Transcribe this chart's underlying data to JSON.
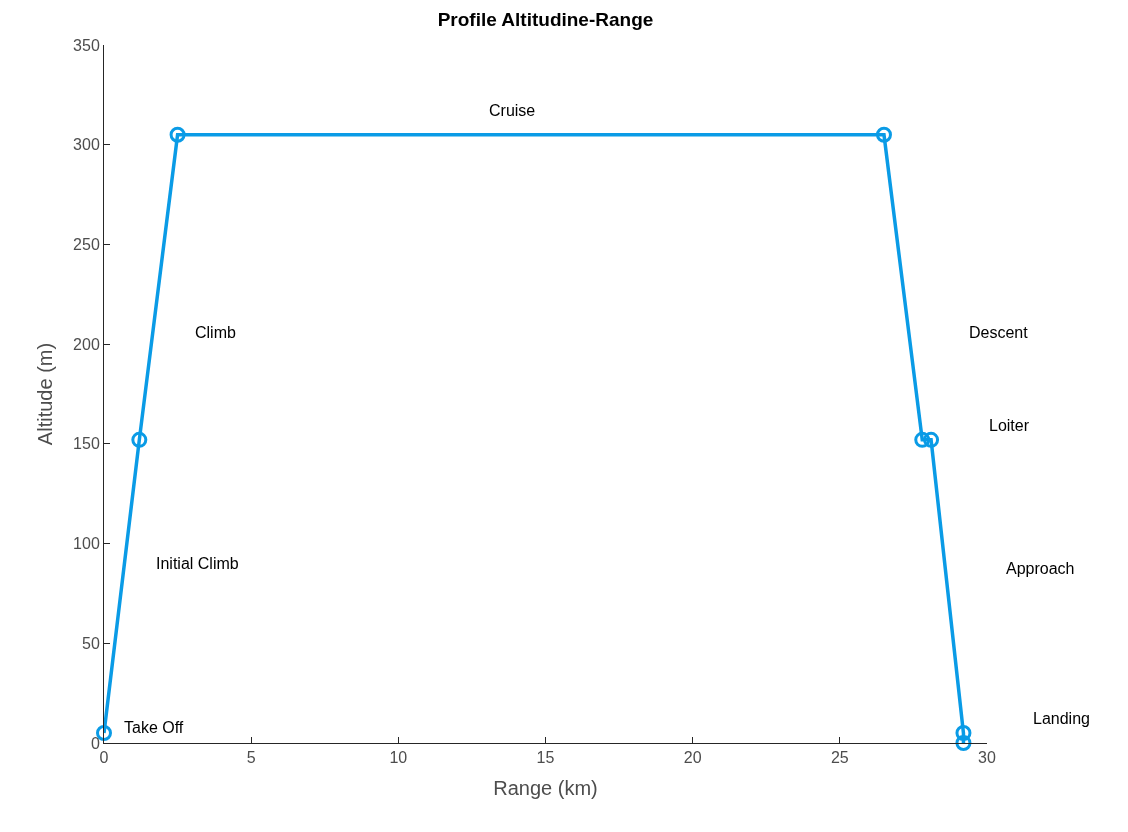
{
  "chart_data": {
    "type": "line",
    "title": "Profile Altitudine-Range",
    "xlabel": "Range (km)",
    "ylabel": "Altitude (m)",
    "x": [
      0,
      1.2,
      2.5,
      26.5,
      27.8,
      28.1,
      29.2,
      29.2
    ],
    "series": [
      {
        "color": "#0a9be6",
        "values": [
          5,
          152,
          305,
          305,
          152,
          152,
          5,
          0
        ]
      }
    ],
    "xlim": [
      0,
      30
    ],
    "xticks": [
      0,
      5,
      10,
      15,
      20,
      25,
      30
    ],
    "ylim": [
      0,
      350
    ],
    "yticks": [
      0,
      50,
      100,
      150,
      200,
      250,
      300,
      350
    ],
    "marker": "circle",
    "line_style": "solid",
    "annotations": [
      "Take Off",
      "Initial Climb",
      "Climb",
      "Cruise",
      "Descent",
      "Loiter",
      "Approach",
      "Landing"
    ]
  }
}
